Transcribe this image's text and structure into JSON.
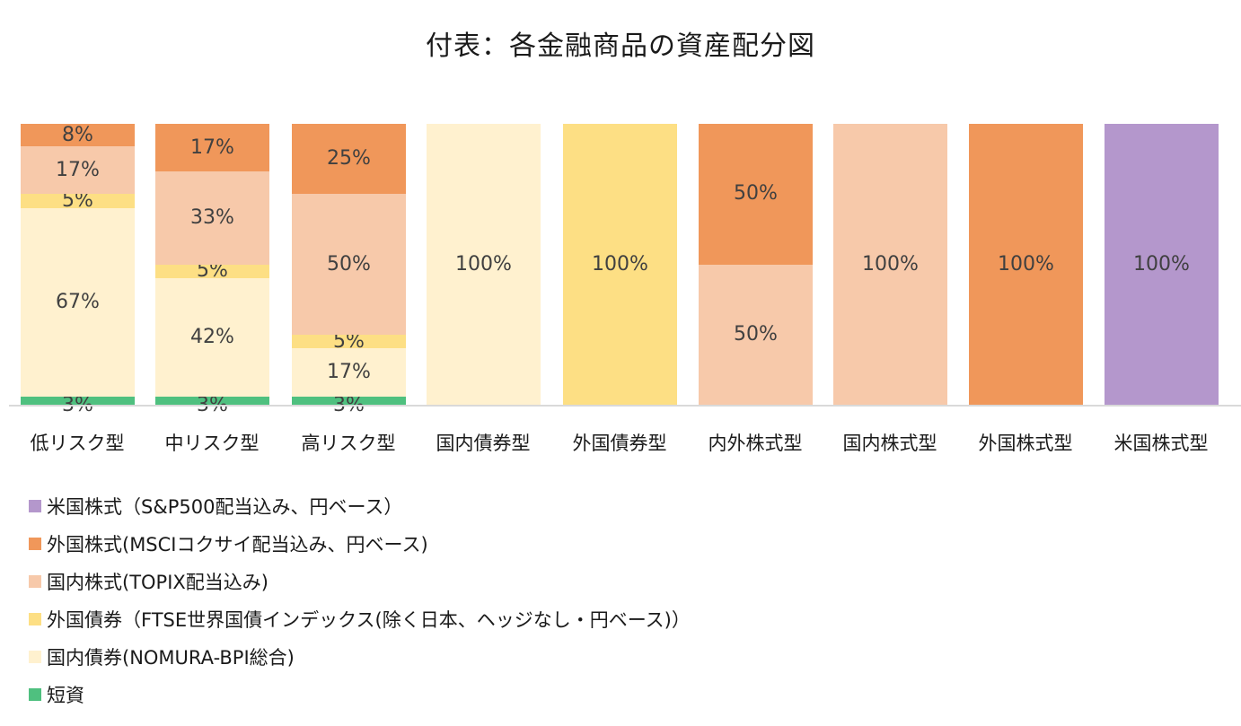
{
  "title": "付表：各金融商品の資産配分図",
  "colors": {
    "us_equity": "#b497cc",
    "foreign_equity": "#f0975a",
    "domestic_equity": "#f7c9aa",
    "foreign_bond": "#fddf84",
    "domestic_bond": "#fff1cf",
    "short_term": "#4fc07f"
  },
  "chart_data": {
    "type": "bar",
    "stacked": true,
    "title": "付表：各金融商品の資産配分図",
    "xlabel": "",
    "ylabel": "",
    "ylim": [
      0,
      100
    ],
    "grid": false,
    "legend_position": "bottom-left",
    "categories": [
      "低リスク型",
      "中リスク型",
      "高リスク型",
      "国内債券型",
      "外国債券型",
      "内外株式型",
      "国内株式型",
      "外国株式型",
      "米国株式型"
    ],
    "series": [
      {
        "name": "短資",
        "key": "short_term",
        "values": [
          3,
          3,
          3,
          0,
          0,
          0,
          0,
          0,
          0
        ]
      },
      {
        "name": "国内債券(NOMURA-BPI総合)",
        "key": "domestic_bond",
        "values": [
          67,
          42,
          17,
          100,
          0,
          0,
          0,
          0,
          0
        ]
      },
      {
        "name": "外国債券（FTSE世界国債インデックス(除く日本、ヘッジなし・円ベース))",
        "key": "foreign_bond",
        "values": [
          5,
          5,
          5,
          0,
          100,
          0,
          0,
          0,
          0
        ]
      },
      {
        "name": "国内株式(TOPIX配当込み)",
        "key": "domestic_equity",
        "values": [
          17,
          33,
          50,
          0,
          0,
          50,
          100,
          0,
          0
        ]
      },
      {
        "name": "外国株式(MSCIコクサイ配当込み、円ベース)",
        "key": "foreign_equity",
        "values": [
          8,
          17,
          25,
          0,
          0,
          50,
          0,
          100,
          0
        ]
      },
      {
        "name": "米国株式（S&P500配当込み、円ベース）",
        "key": "us_equity",
        "values": [
          0,
          0,
          0,
          0,
          0,
          0,
          0,
          0,
          100
        ]
      }
    ],
    "value_format": "{v}%"
  },
  "legend": [
    {
      "label": "米国株式（S&P500配当込み、円ベース）",
      "key": "us_equity"
    },
    {
      "label": "外国株式(MSCIコクサイ配当込み、円ベース)",
      "key": "foreign_equity"
    },
    {
      "label": "国内株式(TOPIX配当込み)",
      "key": "domestic_equity"
    },
    {
      "label": "外国債券（FTSE世界国債インデックス(除く日本、ヘッジなし・円ベース)）",
      "key": "foreign_bond"
    },
    {
      "label": "国内債券(NOMURA-BPI総合)",
      "key": "domestic_bond"
    },
    {
      "label": "短資",
      "key": "short_term"
    }
  ]
}
